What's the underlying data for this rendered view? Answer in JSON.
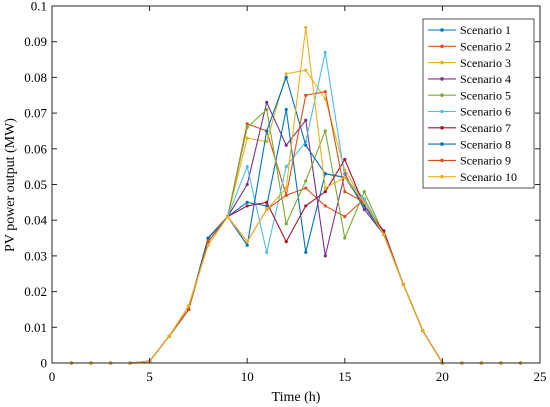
{
  "chart_data": {
    "type": "line",
    "title": "",
    "xlabel": "Time (h)",
    "ylabel": "PV power output (MW)",
    "xlim": [
      0,
      25
    ],
    "ylim": [
      0,
      0.1
    ],
    "xticks": [
      0,
      5,
      10,
      15,
      20,
      25
    ],
    "yticks": [
      0,
      0.01,
      0.02,
      0.03,
      0.04,
      0.05,
      0.06,
      0.07,
      0.08,
      0.09,
      0.1
    ],
    "xtick_labels": [
      "0",
      "5",
      "10",
      "15",
      "20",
      "25"
    ],
    "ytick_labels": [
      "0",
      "0.01",
      "0.02",
      "0.03",
      "0.04",
      "0.05",
      "0.06",
      "0.07",
      "0.08",
      "0.09",
      "0.1"
    ],
    "grid": false,
    "legend_position": "top-right",
    "x": [
      1,
      2,
      3,
      4,
      5,
      6,
      7,
      8,
      9,
      10,
      11,
      12,
      13,
      14,
      15,
      16,
      17,
      18,
      19,
      20,
      21,
      22,
      23,
      24
    ],
    "series": [
      {
        "name": "Scenario 1",
        "color": "#0072BD",
        "values": [
          0,
          0,
          0,
          0,
          0.0005,
          0.0075,
          0.015,
          0.035,
          0.041,
          0.045,
          0.044,
          0.071,
          0.031,
          0.053,
          0.052,
          0.044,
          0.036,
          0.022,
          0.009,
          0,
          0,
          0,
          0,
          0
        ]
      },
      {
        "name": "Scenario 2",
        "color": "#D95319",
        "values": [
          0,
          0,
          0,
          0,
          0.0005,
          0.0075,
          0.015,
          0.035,
          0.041,
          0.067,
          0.065,
          0.047,
          0.049,
          0.044,
          0.041,
          0.046,
          0.036,
          0.022,
          0.009,
          0,
          0,
          0,
          0,
          0
        ]
      },
      {
        "name": "Scenario 3",
        "color": "#EDB120",
        "values": [
          0,
          0,
          0,
          0,
          0.0005,
          0.0075,
          0.016,
          0.034,
          0.041,
          0.063,
          0.062,
          0.081,
          0.082,
          0.074,
          0.054,
          0.045,
          0.036,
          0.022,
          0.009,
          0,
          0,
          0,
          0,
          0
        ]
      },
      {
        "name": "Scenario 4",
        "color": "#7E2F8E",
        "values": [
          0,
          0,
          0,
          0,
          0.0005,
          0.0075,
          0.015,
          0.035,
          0.041,
          0.05,
          0.073,
          0.061,
          0.068,
          0.03,
          0.053,
          0.043,
          0.036,
          0.022,
          0.009,
          0,
          0,
          0,
          0,
          0
        ]
      },
      {
        "name": "Scenario 5",
        "color": "#77AC30",
        "values": [
          0,
          0,
          0,
          0,
          0.0005,
          0.0075,
          0.015,
          0.034,
          0.041,
          0.066,
          0.071,
          0.039,
          0.051,
          0.065,
          0.035,
          0.048,
          0.036,
          0.022,
          0.009,
          0,
          0,
          0,
          0,
          0
        ]
      },
      {
        "name": "Scenario 6",
        "color": "#4DBEEE",
        "values": [
          0,
          0,
          0,
          0,
          0.0005,
          0.0075,
          0.015,
          0.034,
          0.041,
          0.055,
          0.031,
          0.055,
          0.062,
          0.087,
          0.052,
          0.046,
          0.036,
          0.022,
          0.009,
          0,
          0,
          0,
          0,
          0
        ]
      },
      {
        "name": "Scenario 7",
        "color": "#A2142F",
        "values": [
          0,
          0,
          0,
          0,
          0.0005,
          0.0075,
          0.015,
          0.035,
          0.041,
          0.044,
          0.045,
          0.034,
          0.044,
          0.048,
          0.057,
          0.044,
          0.037,
          0.022,
          0.009,
          0,
          0,
          0,
          0,
          0
        ]
      },
      {
        "name": "Scenario 8",
        "color": "#0072BD",
        "values": [
          0,
          0,
          0,
          0,
          0.0005,
          0.0075,
          0.015,
          0.035,
          0.041,
          0.033,
          0.065,
          0.08,
          0.061,
          0.053,
          0.052,
          0.044,
          0.036,
          0.022,
          0.009,
          0,
          0,
          0,
          0,
          0
        ]
      },
      {
        "name": "Scenario 9",
        "color": "#D95319",
        "values": [
          0,
          0,
          0,
          0,
          0.0005,
          0.0075,
          0.015,
          0.034,
          0.041,
          0.034,
          0.043,
          0.047,
          0.075,
          0.076,
          0.048,
          0.045,
          0.036,
          0.022,
          0.009,
          0,
          0,
          0,
          0,
          0
        ]
      },
      {
        "name": "Scenario 10",
        "color": "#EDB120",
        "values": [
          0,
          0,
          0,
          0,
          0.0005,
          0.0075,
          0.016,
          0.033,
          0.041,
          0.034,
          0.043,
          0.049,
          0.094,
          0.049,
          0.052,
          0.045,
          0.036,
          0.022,
          0.009,
          0,
          0,
          0,
          0,
          0
        ]
      }
    ]
  }
}
